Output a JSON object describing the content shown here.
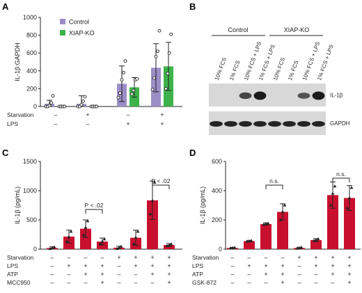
{
  "panels": {
    "A": "A",
    "B": "B",
    "C": "C",
    "D": "D"
  },
  "colors": {
    "control": "#9b8ec7",
    "xiap_ko": "#3db34a",
    "red": "#c8102e",
    "blot_bg": "#d8d8d8",
    "band": "#111111"
  },
  "chart_data": [
    {
      "panel": "A",
      "type": "bar",
      "ylabel": "IL-1β:GAPDH",
      "ylim": [
        0,
        1000
      ],
      "yticks": [
        "0",
        "200",
        "400",
        "600",
        "800",
        "1000"
      ],
      "legend": [
        "Control",
        "XIAP-KO"
      ],
      "conditions": [
        {
          "label": "Starvation",
          "values": [
            "–",
            "+",
            "–",
            "+"
          ]
        },
        {
          "label": "LPS",
          "values": [
            "–",
            "–",
            "+",
            "+"
          ]
        }
      ],
      "series": [
        {
          "name": "Control",
          "values": [
            30,
            30,
            255,
            435
          ],
          "err": [
            40,
            90,
            200,
            270
          ],
          "points": [
            [
              0,
              0,
              10,
              40,
              120
            ],
            [
              0,
              0,
              20,
              60,
              110
            ],
            [
              100,
              150,
              300,
              380,
              510
            ],
            [
              190,
              320,
              560,
              620,
              850
            ]
          ]
        },
        {
          "name": "XIAP-KO",
          "values": [
            0,
            0,
            215,
            450
          ],
          "err": [
            0,
            0,
            110,
            270
          ],
          "points": [
            [
              0,
              0,
              0,
              0
            ],
            [
              0,
              0,
              0,
              0
            ],
            [
              140,
              180,
              300,
              310
            ],
            [
              200,
              370,
              600,
              810
            ]
          ]
        }
      ]
    },
    {
      "panel": "C",
      "type": "bar",
      "ylabel": "IL-1β (pg/mL)",
      "ylim": [
        0,
        1500
      ],
      "yticks": [
        "0",
        "500",
        "1000",
        "1500"
      ],
      "values": [
        20,
        215,
        350,
        130,
        25,
        195,
        835,
        70
      ],
      "err": [
        20,
        110,
        150,
        60,
        25,
        130,
        330,
        25
      ],
      "points": [
        [
          5,
          20,
          35
        ],
        [
          130,
          210,
          300
        ],
        [
          240,
          370,
          480
        ],
        [
          90,
          130,
          170
        ],
        [
          5,
          25,
          45
        ],
        [
          90,
          200,
          300
        ],
        [
          600,
          830,
          1140
        ],
        [
          55,
          70,
          85
        ]
      ],
      "conditions": [
        {
          "label": "Starvation",
          "values": [
            "–",
            "–",
            "–",
            "–",
            "+",
            "+",
            "+",
            "+"
          ]
        },
        {
          "label": "LPS",
          "values": [
            "–",
            "+",
            "+",
            "+",
            "–",
            "+",
            "+",
            "+"
          ]
        },
        {
          "label": "ATP",
          "values": [
            "–",
            "–",
            "+",
            "+",
            "–",
            "–",
            "+",
            "+"
          ]
        },
        {
          "label": "MCC950",
          "values": [
            "–",
            "–",
            "–",
            "+",
            "–",
            "–",
            "–",
            "+"
          ]
        }
      ],
      "annotations": [
        {
          "text": "P < .02",
          "from": 2,
          "to": 3
        },
        {
          "text": "P < .02",
          "from": 6,
          "to": 7
        }
      ]
    },
    {
      "panel": "D",
      "type": "bar",
      "ylabel": "IL-1β (pg/mL)",
      "ylim": [
        0,
        600
      ],
      "yticks": [
        "0",
        "200",
        "400",
        "600"
      ],
      "values": [
        8,
        55,
        172,
        255,
        8,
        62,
        370,
        350
      ],
      "err": [
        4,
        5,
        8,
        55,
        5,
        10,
        90,
        85
      ],
      "points": [
        [
          5,
          8,
          10
        ],
        [
          52,
          55,
          58
        ],
        [
          168,
          172,
          176
        ],
        [
          200,
          255,
          300
        ],
        [
          4,
          8,
          12
        ],
        [
          58,
          62,
          70
        ],
        [
          300,
          380,
          430
        ],
        [
          280,
          350,
          420
        ]
      ],
      "conditions": [
        {
          "label": "Starvation",
          "values": [
            "–",
            "–",
            "–",
            "–",
            "+",
            "+",
            "+",
            "+"
          ]
        },
        {
          "label": "LPS",
          "values": [
            "–",
            "+",
            "+",
            "+",
            "–",
            "+",
            "+",
            "+"
          ]
        },
        {
          "label": "ATP",
          "values": [
            "–",
            "–",
            "+",
            "+",
            "–",
            "–",
            "+",
            "+"
          ]
        },
        {
          "label": "GSK-872",
          "values": [
            "–",
            "–",
            "–",
            "+",
            "–",
            "–",
            "–",
            "+"
          ]
        }
      ],
      "annotations": [
        {
          "text": "n.s.",
          "from": 2,
          "to": 3
        },
        {
          "text": "n.s.",
          "from": 6,
          "to": 7
        }
      ]
    }
  ],
  "blot": {
    "groups": [
      "Control",
      "XIAP-KO"
    ],
    "lanes": [
      "10% FCS",
      "1% FCS",
      "10% FCS + LPS",
      "1% FCS + LPS",
      "10% FCS",
      "1% FCS",
      "10% FCS + LPS",
      "1% FCS + LPS"
    ],
    "il1b_label": "IL-1β",
    "gapdh_label": "GAPDH",
    "il1b_intensity": [
      0,
      0,
      0.65,
      1.0,
      0,
      0,
      0.55,
      1.0
    ],
    "gapdh_intensity": [
      1,
      1,
      1,
      1,
      1,
      1,
      1,
      1
    ]
  }
}
